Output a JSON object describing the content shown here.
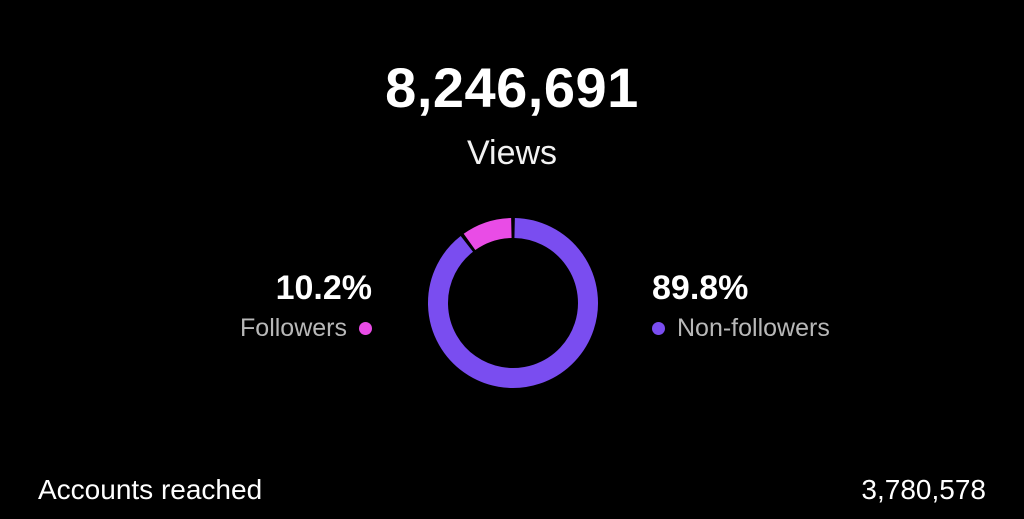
{
  "views": {
    "total": "8,246,691",
    "label": "Views"
  },
  "breakdown": {
    "followers": {
      "percent_label": "10.2%",
      "name": "Followers",
      "fraction": 0.102,
      "color": "#e94ce6"
    },
    "non_followers": {
      "percent_label": "89.8%",
      "name": "Non-followers",
      "fraction": 0.898,
      "color": "#7a4df0"
    }
  },
  "metrics": {
    "accounts_reached": {
      "label": "Accounts reached",
      "value": "3,780,578"
    }
  }
}
